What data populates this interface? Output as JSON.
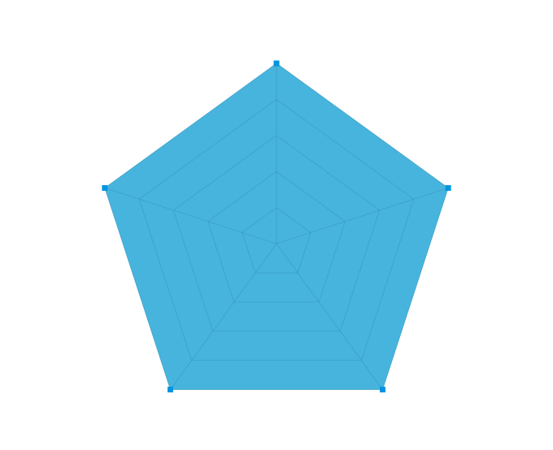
{
  "chart_data": {
    "type": "radar",
    "categories": [
      "",
      "",
      "",
      "",
      ""
    ],
    "series": [
      {
        "values": [
          5,
          5,
          5,
          5,
          5
        ]
      }
    ],
    "rlim": [
      0,
      5
    ],
    "ring_count": 5,
    "grid": true,
    "legend": "none",
    "colors": {
      "fill": "#47b4dd",
      "grid": "#3a9bc0",
      "marker": "#0094e0"
    }
  }
}
